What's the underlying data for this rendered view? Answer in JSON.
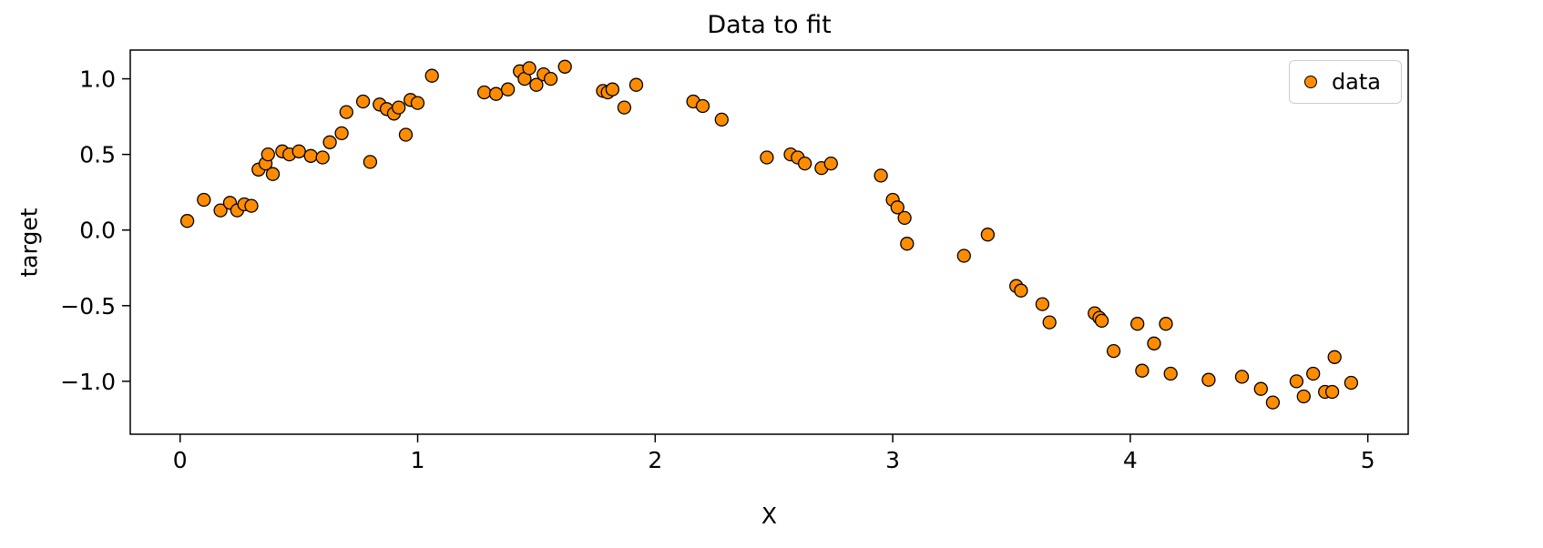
{
  "chart_data": {
    "type": "scatter",
    "title": "Data to fit",
    "xlabel": "X",
    "ylabel": "target",
    "legend": [
      "data"
    ],
    "legend_position": "upper right",
    "grid": false,
    "marker_color": "#ff8c00",
    "marker_edge_color": "#000000",
    "xlim": [
      -0.21,
      5.17
    ],
    "ylim": [
      -1.35,
      1.19
    ],
    "xtick_values": [
      0,
      1,
      2,
      3,
      4,
      5
    ],
    "xtick_labels": [
      "0",
      "1",
      "2",
      "3",
      "4",
      "5"
    ],
    "ytick_values": [
      -1.0,
      -0.5,
      0.0,
      0.5,
      1.0
    ],
    "ytick_labels": [
      "−1.0",
      "−0.5",
      "0.0",
      "0.5",
      "1.0"
    ],
    "points": [
      [
        0.03,
        0.06
      ],
      [
        0.1,
        0.2
      ],
      [
        0.17,
        0.13
      ],
      [
        0.21,
        0.18
      ],
      [
        0.24,
        0.13
      ],
      [
        0.27,
        0.17
      ],
      [
        0.3,
        0.16
      ],
      [
        0.33,
        0.4
      ],
      [
        0.36,
        0.44
      ],
      [
        0.37,
        0.5
      ],
      [
        0.39,
        0.37
      ],
      [
        0.43,
        0.52
      ],
      [
        0.46,
        0.5
      ],
      [
        0.5,
        0.52
      ],
      [
        0.55,
        0.49
      ],
      [
        0.6,
        0.48
      ],
      [
        0.63,
        0.58
      ],
      [
        0.68,
        0.64
      ],
      [
        0.7,
        0.78
      ],
      [
        0.77,
        0.85
      ],
      [
        0.8,
        0.45
      ],
      [
        0.84,
        0.83
      ],
      [
        0.87,
        0.8
      ],
      [
        0.9,
        0.77
      ],
      [
        0.92,
        0.81
      ],
      [
        0.95,
        0.63
      ],
      [
        0.97,
        0.86
      ],
      [
        1.0,
        0.84
      ],
      [
        1.06,
        1.02
      ],
      [
        1.28,
        0.91
      ],
      [
        1.33,
        0.9
      ],
      [
        1.38,
        0.93
      ],
      [
        1.43,
        1.05
      ],
      [
        1.45,
        1.0
      ],
      [
        1.47,
        1.07
      ],
      [
        1.5,
        0.96
      ],
      [
        1.53,
        1.03
      ],
      [
        1.56,
        1.0
      ],
      [
        1.62,
        1.08
      ],
      [
        1.78,
        0.92
      ],
      [
        1.8,
        0.91
      ],
      [
        1.82,
        0.93
      ],
      [
        1.87,
        0.81
      ],
      [
        1.92,
        0.96
      ],
      [
        2.16,
        0.85
      ],
      [
        2.2,
        0.82
      ],
      [
        2.28,
        0.73
      ],
      [
        2.47,
        0.48
      ],
      [
        2.57,
        0.5
      ],
      [
        2.6,
        0.48
      ],
      [
        2.63,
        0.44
      ],
      [
        2.7,
        0.41
      ],
      [
        2.74,
        0.44
      ],
      [
        2.95,
        0.36
      ],
      [
        3.0,
        0.2
      ],
      [
        3.02,
        0.15
      ],
      [
        3.05,
        0.08
      ],
      [
        3.06,
        -0.09
      ],
      [
        3.3,
        -0.17
      ],
      [
        3.4,
        -0.03
      ],
      [
        3.52,
        -0.37
      ],
      [
        3.54,
        -0.4
      ],
      [
        3.63,
        -0.49
      ],
      [
        3.66,
        -0.61
      ],
      [
        3.85,
        -0.55
      ],
      [
        3.87,
        -0.58
      ],
      [
        3.88,
        -0.6
      ],
      [
        3.93,
        -0.8
      ],
      [
        4.03,
        -0.62
      ],
      [
        4.05,
        -0.93
      ],
      [
        4.1,
        -0.75
      ],
      [
        4.15,
        -0.62
      ],
      [
        4.17,
        -0.95
      ],
      [
        4.33,
        -0.99
      ],
      [
        4.47,
        -0.97
      ],
      [
        4.55,
        -1.05
      ],
      [
        4.6,
        -1.14
      ],
      [
        4.7,
        -1.0
      ],
      [
        4.73,
        -1.1
      ],
      [
        4.77,
        -0.95
      ],
      [
        4.82,
        -1.07
      ],
      [
        4.85,
        -1.07
      ],
      [
        4.86,
        -0.84
      ],
      [
        4.93,
        -1.01
      ]
    ]
  }
}
